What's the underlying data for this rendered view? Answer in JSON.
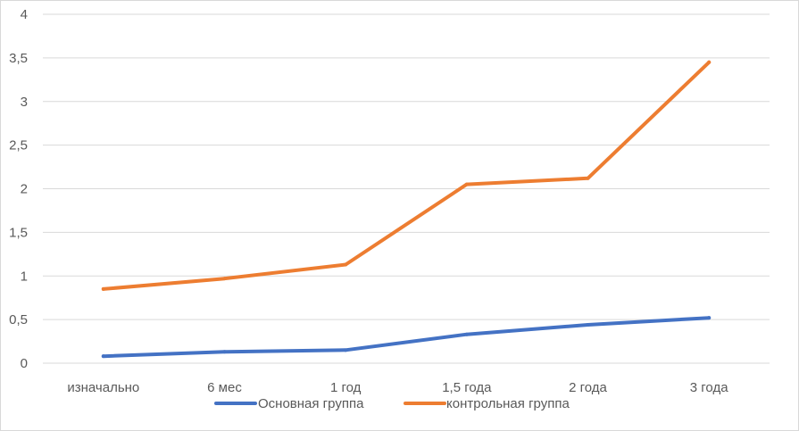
{
  "chart_data": {
    "type": "line",
    "title": "",
    "xlabel": "",
    "ylabel": "",
    "categories": [
      "изначально",
      "6 мес",
      "1 год",
      "1,5 года",
      "2 года",
      "3 года"
    ],
    "ylim": [
      0,
      4
    ],
    "yticks": [
      "0",
      "0,5",
      "1",
      "1,5",
      "2",
      "2,5",
      "3",
      "3,5",
      "4"
    ],
    "grid": true,
    "legend_position": "bottom",
    "series": [
      {
        "name": "Основная группа",
        "color": "#4472c4",
        "values": [
          0.08,
          0.13,
          0.15,
          0.33,
          0.44,
          0.52
        ]
      },
      {
        "name": "контрольная группа",
        "color": "#ed7d31",
        "values": [
          0.85,
          0.97,
          1.13,
          2.05,
          2.12,
          3.45
        ]
      }
    ]
  }
}
